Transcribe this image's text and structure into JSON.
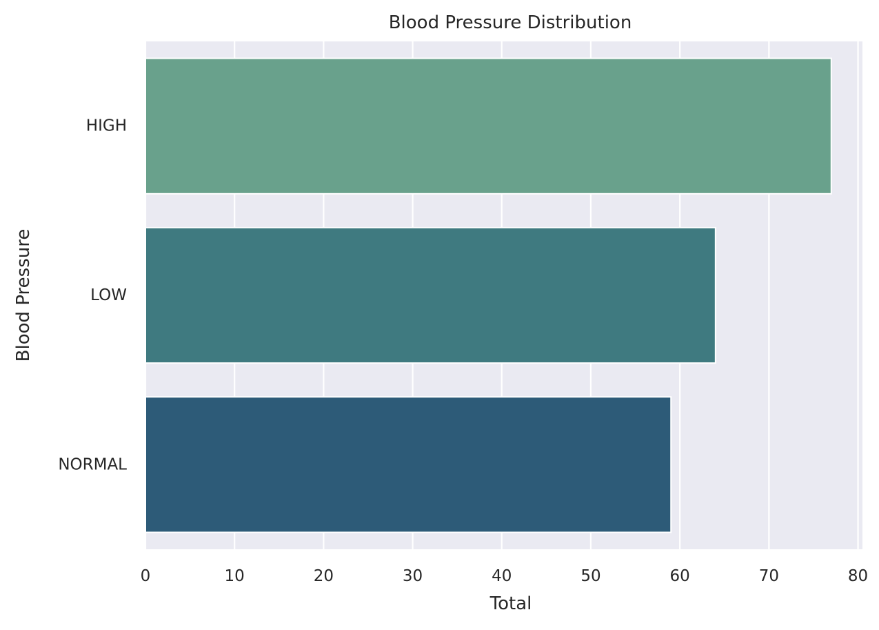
{
  "chart_data": {
    "type": "bar",
    "orientation": "horizontal",
    "title": "Blood Pressure Distribution",
    "xlabel": "Total",
    "ylabel": "Blood Pressure",
    "categories": [
      "HIGH",
      "LOW",
      "NORMAL"
    ],
    "values": [
      77,
      64,
      59
    ],
    "xlim": [
      0,
      80.5
    ],
    "xticks": [
      0,
      10,
      20,
      30,
      40,
      50,
      60,
      70,
      80
    ],
    "grid": true,
    "colors": [
      "#69a18c",
      "#3f7a80",
      "#2d5b78"
    ],
    "background": "#eaeaf2"
  }
}
